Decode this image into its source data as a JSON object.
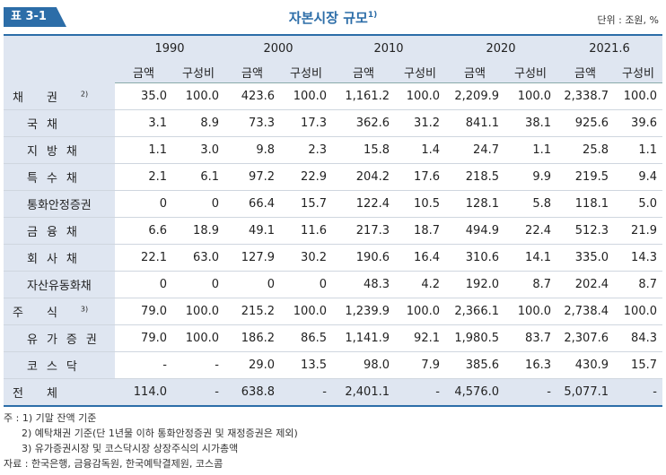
{
  "header": {
    "tag": "표 3-1",
    "title": "자본시장 규모",
    "title_note": "1)",
    "unit": "단위 : 조원, %"
  },
  "columns": {
    "years": [
      "1990",
      "2000",
      "2010",
      "2020",
      "2021.6"
    ],
    "sub": [
      "금액",
      "구성비"
    ]
  },
  "rows": [
    {
      "label": "채권",
      "note": "2)",
      "values": [
        "35.0",
        "100.0",
        "423.6",
        "100.0",
        "1,161.2",
        "100.0",
        "2,209.9",
        "100.0",
        "2,338.7",
        "100.0"
      ]
    },
    {
      "label": "국채",
      "values": [
        "3.1",
        "8.9",
        "73.3",
        "17.3",
        "362.6",
        "31.2",
        "841.1",
        "38.1",
        "925.6",
        "39.6"
      ]
    },
    {
      "label": "지방채",
      "values": [
        "1.1",
        "3.0",
        "9.8",
        "2.3",
        "15.8",
        "1.4",
        "24.7",
        "1.1",
        "25.8",
        "1.1"
      ]
    },
    {
      "label": "특수채",
      "values": [
        "2.1",
        "6.1",
        "97.2",
        "22.9",
        "204.2",
        "17.6",
        "218.5",
        "9.9",
        "219.5",
        "9.4"
      ]
    },
    {
      "label": "통화안정증권",
      "values": [
        "0",
        "0",
        "66.4",
        "15.7",
        "122.4",
        "10.5",
        "128.1",
        "5.8",
        "118.1",
        "5.0"
      ]
    },
    {
      "label": "금융채",
      "values": [
        "6.6",
        "18.9",
        "49.1",
        "11.6",
        "217.3",
        "18.7",
        "494.9",
        "22.4",
        "512.3",
        "21.9"
      ]
    },
    {
      "label": "회사채",
      "values": [
        "22.1",
        "63.0",
        "127.9",
        "30.2",
        "190.6",
        "16.4",
        "310.6",
        "14.1",
        "335.0",
        "14.3"
      ]
    },
    {
      "label": "자산유동화채",
      "values": [
        "0",
        "0",
        "0",
        "0",
        "48.3",
        "4.2",
        "192.0",
        "8.7",
        "202.4",
        "8.7"
      ]
    },
    {
      "label": "주식",
      "note": "3)",
      "values": [
        "79.0",
        "100.0",
        "215.2",
        "100.0",
        "1,239.9",
        "100.0",
        "2,366.1",
        "100.0",
        "2,738.4",
        "100.0"
      ]
    },
    {
      "label": "유가증권",
      "values": [
        "79.0",
        "100.0",
        "186.2",
        "86.5",
        "1,141.9",
        "92.1",
        "1,980.5",
        "83.7",
        "2,307.6",
        "84.3"
      ]
    },
    {
      "label": "코스닥",
      "values": [
        "-",
        "-",
        "29.0",
        "13.5",
        "98.0",
        "7.9",
        "385.6",
        "16.3",
        "430.9",
        "15.7"
      ]
    },
    {
      "label": "전체",
      "values": [
        "114.0",
        "-",
        "638.8",
        "-",
        "2,401.1",
        "-",
        "4,576.0",
        "-",
        "5,077.1",
        "-"
      ]
    }
  ],
  "notes": [
    "주 : 1) 기말 잔액 기준",
    "2) 예탁채권 기준(단 1년물 이하 통화안정증권 및 재정증권은 제외)",
    "3) 유가증권시장 및 코스닥시장 상장주식의 시가총액",
    "자료 : 한국은행, 금융감독원, 한국예탁결제원, 코스콤"
  ]
}
